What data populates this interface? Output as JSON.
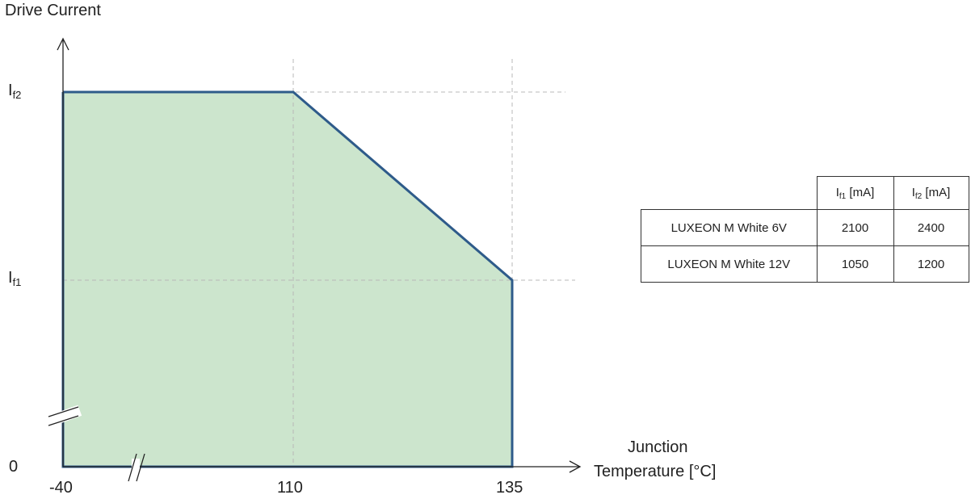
{
  "chart_data": {
    "type": "area",
    "ylabel": "Drive Current",
    "xlabel_line1": "Junction",
    "xlabel_line2": "Temperature [°C]",
    "x_ticks": [
      "-40",
      "110",
      "135"
    ],
    "y_ticks": {
      "zero": "0",
      "if1": {
        "main": "I",
        "sub": "f1"
      },
      "if2": {
        "main": "I",
        "sub": "f2"
      }
    },
    "curve": [
      {
        "x": -40,
        "y": "I_f2"
      },
      {
        "x": 110,
        "y": "I_f2"
      },
      {
        "x": 135,
        "y": "I_f1"
      },
      {
        "x": 135,
        "y": 0
      },
      {
        "x": -40,
        "y": 0
      }
    ],
    "fill_color": "#cce5cd",
    "line_color": "#2e5b8a",
    "axis_breaks": [
      "x",
      "y"
    ]
  },
  "table": {
    "headers": [
      {
        "main": "I",
        "sub": "f1",
        "unit": " [mA]"
      },
      {
        "main": "I",
        "sub": "f2",
        "unit": " [mA]"
      }
    ],
    "rows": [
      {
        "name": "LUXEON M White 6V",
        "if1": "2100",
        "if2": "2400"
      },
      {
        "name": "LUXEON M White 12V",
        "if1": "1050",
        "if2": "1200"
      }
    ]
  }
}
